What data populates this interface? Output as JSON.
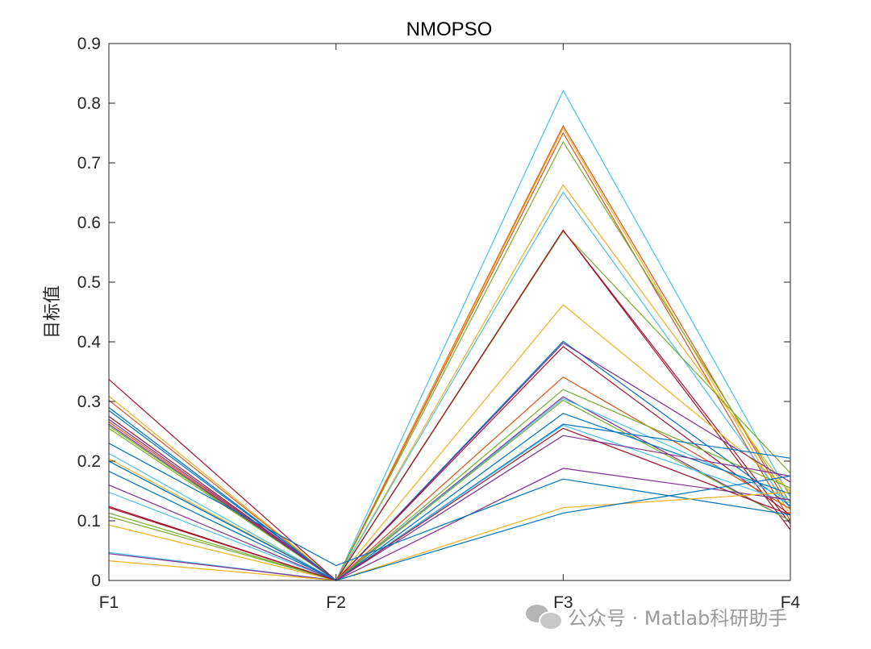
{
  "chart_data": {
    "type": "line",
    "title": "NMOPSO",
    "xlabel": "",
    "ylabel": "目标值",
    "categories": [
      "F1",
      "F2",
      "F3",
      "F4"
    ],
    "ylim": [
      0,
      0.9
    ],
    "yticks": [
      0,
      0.1,
      0.2,
      0.3,
      0.4,
      0.5,
      0.6,
      0.7,
      0.8,
      0.9
    ],
    "ytick_labels": [
      "0",
      "0.1",
      "0.2",
      "0.3",
      "0.4",
      "0.5",
      "0.6",
      "0.7",
      "0.8",
      "0.9"
    ],
    "grid": false,
    "box": true,
    "series": [
      {
        "color": "#4DBEEE",
        "values": [
          0.213,
          0.0,
          0.821,
          0.14
        ]
      },
      {
        "color": "#D95319",
        "values": [
          0.302,
          0.0,
          0.762,
          0.12
        ]
      },
      {
        "color": "#EDB120",
        "values": [
          0.309,
          0.0,
          0.758,
          0.11
        ]
      },
      {
        "color": "#D95319",
        "values": [
          0.266,
          0.0,
          0.75,
          0.1
        ]
      },
      {
        "color": "#77AC30",
        "values": [
          0.259,
          0.0,
          0.735,
          0.13
        ]
      },
      {
        "color": "#EDB120",
        "values": [
          0.204,
          0.0,
          0.663,
          0.145
        ]
      },
      {
        "color": "#4DBEEE",
        "values": [
          0.148,
          0.0,
          0.651,
          0.12
        ]
      },
      {
        "color": "#A2142F",
        "values": [
          0.337,
          0.0,
          0.587,
          0.095
        ]
      },
      {
        "color": "#77AC30",
        "values": [
          0.255,
          0.0,
          0.585,
          0.18
        ]
      },
      {
        "color": "#A2142F",
        "values": [
          0.124,
          0.0,
          0.587,
          0.085
        ]
      },
      {
        "color": "#EDB120",
        "values": [
          0.093,
          0.0,
          0.462,
          0.15
        ]
      },
      {
        "color": "#0072BD",
        "values": [
          0.29,
          0.0,
          0.401,
          0.125
        ]
      },
      {
        "color": "#7E2F8E",
        "values": [
          0.16,
          0.0,
          0.398,
          0.165
        ]
      },
      {
        "color": "#A2142F",
        "values": [
          0.275,
          0.0,
          0.392,
          0.11
        ]
      },
      {
        "color": "#D95319",
        "values": [
          0.2,
          0.0,
          0.341,
          0.12
        ]
      },
      {
        "color": "#77AC30",
        "values": [
          0.113,
          0.0,
          0.32,
          0.155
        ]
      },
      {
        "color": "#7E2F8E",
        "values": [
          0.27,
          0.0,
          0.308,
          0.1
        ]
      },
      {
        "color": "#4DBEEE",
        "values": [
          0.047,
          0.0,
          0.305,
          0.135
        ]
      },
      {
        "color": "#77AC30",
        "values": [
          0.107,
          0.0,
          0.302,
          0.1
        ]
      },
      {
        "color": "#0072BD",
        "values": [
          0.183,
          0.0,
          0.28,
          0.145
        ]
      },
      {
        "color": "#0072BD",
        "values": [
          0.285,
          0.0,
          0.262,
          0.205
        ]
      },
      {
        "color": "#4DBEEE",
        "values": [
          0.2,
          0.0,
          0.26,
          0.13
        ]
      },
      {
        "color": "#A2142F",
        "values": [
          0.122,
          0.0,
          0.255,
          0.11
        ]
      },
      {
        "color": "#7E2F8E",
        "values": [
          0.262,
          0.0,
          0.243,
          0.175
        ]
      },
      {
        "color": "#7E2F8E",
        "values": [
          0.045,
          0.0,
          0.188,
          0.135
        ]
      },
      {
        "color": "#0072BD",
        "values": [
          0.23,
          0.025,
          0.17,
          0.11
        ]
      },
      {
        "color": "#EDB120",
        "values": [
          0.033,
          0.0,
          0.122,
          0.148
        ]
      },
      {
        "color": "#0072BD",
        "values": [
          0.2,
          0.0,
          0.113,
          0.175
        ]
      }
    ]
  },
  "watermark": {
    "icon": "wechat-icon",
    "text": "公众号 · Matlab科研助手"
  }
}
